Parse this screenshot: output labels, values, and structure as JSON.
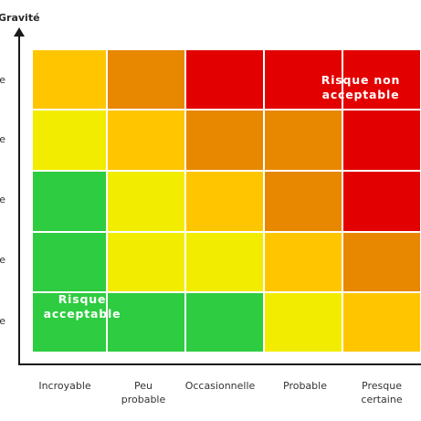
{
  "axes": {
    "y_title": "Gravité",
    "row_tick_glyphs": [
      "e",
      "e",
      "e",
      "e",
      "e"
    ]
  },
  "columns": [
    "Incroyable",
    "Peu\nprobable",
    "Occasionnelle",
    "Probable",
    "Presque\ncertaine"
  ],
  "palette": {
    "green": "#2ecc40",
    "yellow": "#f2ed00",
    "amber": "#ffc600",
    "orange": "#e88700",
    "red": "#e30000"
  },
  "matrix": [
    [
      "amber",
      "orange",
      "red",
      "red",
      "red"
    ],
    [
      "yellow",
      "amber",
      "orange",
      "orange",
      "red"
    ],
    [
      "green",
      "yellow",
      "amber",
      "orange",
      "red"
    ],
    [
      "green",
      "yellow",
      "yellow",
      "amber",
      "orange"
    ],
    [
      "green",
      "green",
      "green",
      "yellow",
      "amber"
    ]
  ],
  "zones": {
    "high_label": "Risque non\nacceptable",
    "low_label": "Risque\nacceptable"
  }
}
